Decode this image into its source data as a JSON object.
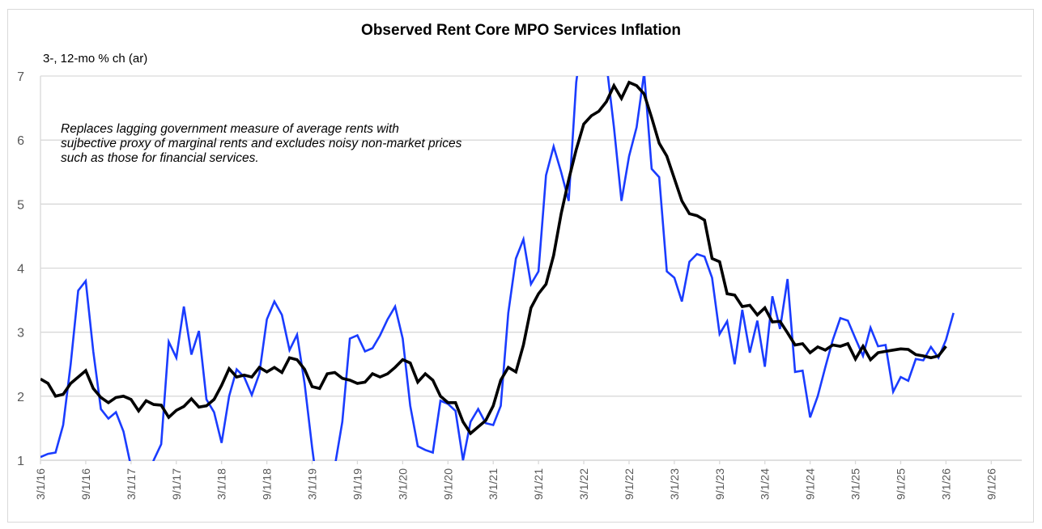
{
  "chart_data": {
    "type": "line",
    "title": "Observed Rent Core MPO  Services Inflation",
    "ylabel": "3-, 12-mo % ch (ar)",
    "xlabel": "",
    "annotation": [
      "Replaces lagging government measure of average rents with",
      "sujbective proxy of marginal rents and excludes noisy non-market prices",
      "such as those for financial services."
    ],
    "ylim": [
      1,
      7
    ],
    "yticks": [
      1,
      2,
      3,
      4,
      5,
      6,
      7
    ],
    "xrange_months": [
      "2016-03",
      "2026-09"
    ],
    "xticks": [
      "3/1/16",
      "9/1/16",
      "3/1/17",
      "9/1/17",
      "3/1/18",
      "9/1/18",
      "3/1/19",
      "9/1/19",
      "3/1/20",
      "9/1/20",
      "3/1/21",
      "9/1/21",
      "3/1/22",
      "9/1/22",
      "3/1/23",
      "9/1/23",
      "3/1/24",
      "9/1/24",
      "3/1/25",
      "9/1/25",
      "3/1/26",
      "9/1/26"
    ],
    "grid": "horizontal",
    "legend": "none",
    "start_month": "2016-03",
    "series": [
      {
        "name": "3-mo % ch (ar)",
        "color": "#1a3cff",
        "values": [
          1.05,
          1.1,
          1.12,
          1.55,
          2.5,
          3.65,
          3.8,
          2.7,
          1.8,
          1.65,
          1.75,
          1.45,
          0.9,
          0.5,
          0.6,
          1.0,
          1.25,
          2.85,
          2.6,
          3.4,
          2.65,
          3.02,
          1.95,
          1.75,
          1.27,
          2.0,
          2.42,
          2.3,
          2.02,
          2.35,
          3.2,
          3.48,
          3.27,
          2.72,
          2.96,
          2.2,
          1.2,
          0.3,
          0.2,
          0.9,
          1.6,
          2.9,
          2.95,
          2.7,
          2.75,
          2.95,
          3.2,
          3.4,
          2.9,
          1.85,
          1.22,
          1.16,
          1.12,
          1.93,
          1.88,
          1.77,
          1.0,
          1.6,
          1.8,
          1.58,
          1.55,
          1.85,
          3.3,
          4.15,
          4.45,
          3.75,
          3.95,
          5.45,
          5.9,
          5.5,
          5.05,
          6.9,
          7.8,
          8.3,
          8.1,
          7.2,
          6.2,
          5.05,
          5.75,
          6.2,
          7.05,
          5.55,
          5.42,
          3.95,
          3.85,
          3.48,
          4.1,
          4.22,
          4.18,
          3.85,
          2.97,
          3.17,
          2.5,
          3.35,
          2.68,
          3.18,
          2.46,
          3.56,
          3.05,
          3.83,
          2.38,
          2.4,
          1.67,
          2.0,
          2.45,
          2.88,
          3.22,
          3.18,
          2.9,
          2.63,
          3.07,
          2.78,
          2.8,
          2.07,
          2.3,
          2.24,
          2.58,
          2.56,
          2.77,
          2.6,
          2.88,
          3.3
        ]
      },
      {
        "name": "12-mo % ch",
        "color": "#000000",
        "values": [
          2.27,
          2.2,
          2.0,
          2.03,
          2.2,
          2.3,
          2.4,
          2.12,
          1.98,
          1.9,
          1.98,
          2.0,
          1.95,
          1.77,
          1.93,
          1.87,
          1.86,
          1.67,
          1.78,
          1.84,
          1.96,
          1.83,
          1.85,
          1.95,
          2.17,
          2.43,
          2.3,
          2.33,
          2.3,
          2.45,
          2.38,
          2.45,
          2.37,
          2.6,
          2.57,
          2.42,
          2.15,
          2.12,
          2.35,
          2.37,
          2.28,
          2.25,
          2.2,
          2.22,
          2.35,
          2.3,
          2.35,
          2.45,
          2.57,
          2.52,
          2.22,
          2.35,
          2.25,
          2.0,
          1.9,
          1.9,
          1.6,
          1.42,
          1.52,
          1.62,
          1.85,
          2.25,
          2.45,
          2.38,
          2.8,
          3.38,
          3.6,
          3.75,
          4.2,
          4.85,
          5.38,
          5.85,
          6.25,
          6.38,
          6.45,
          6.6,
          6.85,
          6.65,
          6.9,
          6.85,
          6.72,
          6.35,
          5.95,
          5.75,
          5.4,
          5.05,
          4.85,
          4.82,
          4.75,
          4.15,
          4.1,
          3.6,
          3.58,
          3.4,
          3.42,
          3.27,
          3.38,
          3.16,
          3.17,
          2.99,
          2.8,
          2.82,
          2.68,
          2.77,
          2.72,
          2.8,
          2.78,
          2.82,
          2.58,
          2.78,
          2.57,
          2.68,
          2.7,
          2.72,
          2.74,
          2.73,
          2.65,
          2.63,
          2.6,
          2.63,
          2.78
        ]
      }
    ]
  }
}
